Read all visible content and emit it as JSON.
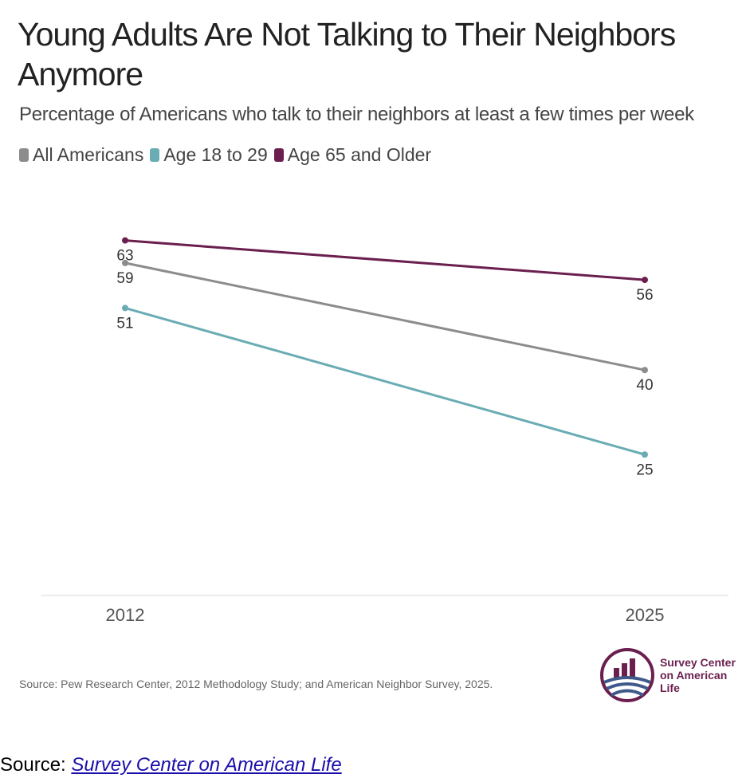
{
  "chart_data": {
    "type": "line",
    "title": "Young Adults Are Not Talking to Their Neighbors Anymore",
    "subtitle": "Percentage of Americans who talk to their neighbors at least a few times per week",
    "x": [
      "2012",
      "2025"
    ],
    "series": [
      {
        "name": "All Americans",
        "values": [
          59,
          40
        ],
        "color": "#8c8c8c"
      },
      {
        "name": "Age 18 to 29",
        "values": [
          51,
          25
        ],
        "color": "#6aacb4"
      },
      {
        "name": "Age 65 and Older",
        "values": [
          63,
          56
        ],
        "color": "#6a1f4e"
      }
    ],
    "xlabel": "",
    "ylabel": "",
    "ylim": [
      0,
      70
    ],
    "grid": false,
    "legend": "top-left",
    "source": "Source: Pew Research Center, 2012 Methodology Study; and American Neighbor Survey, 2025."
  },
  "logo": {
    "line1": "Survey Center",
    "line2": "on American Life"
  },
  "footer": {
    "prefix": "Source: ",
    "link_text": "Survey Center on American Life"
  }
}
